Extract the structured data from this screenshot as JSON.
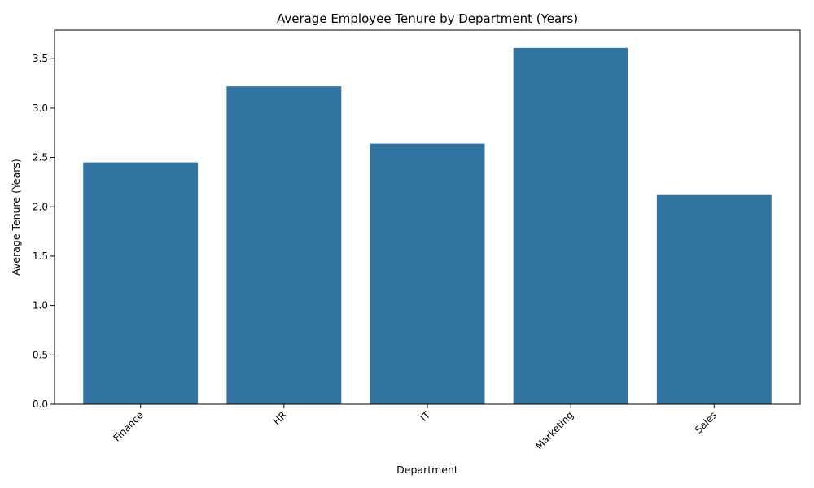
{
  "chart_data": {
    "type": "bar",
    "title": "Average Employee Tenure by Department (Years)",
    "xlabel": "Department",
    "ylabel": "Average Tenure (Years)",
    "categories": [
      "Finance",
      "HR",
      "IT",
      "Marketing",
      "Sales"
    ],
    "values": [
      2.45,
      3.22,
      2.64,
      3.61,
      2.12
    ],
    "ylim": [
      0,
      3.79
    ],
    "yticks": [
      0.0,
      0.5,
      1.0,
      1.5,
      2.0,
      2.5,
      3.0,
      3.5
    ],
    "ytick_labels": [
      "0.0",
      "0.5",
      "1.0",
      "1.5",
      "2.0",
      "2.5",
      "3.0",
      "3.5"
    ],
    "grid": false,
    "legend": "none",
    "bar_color": "#3274a1"
  }
}
